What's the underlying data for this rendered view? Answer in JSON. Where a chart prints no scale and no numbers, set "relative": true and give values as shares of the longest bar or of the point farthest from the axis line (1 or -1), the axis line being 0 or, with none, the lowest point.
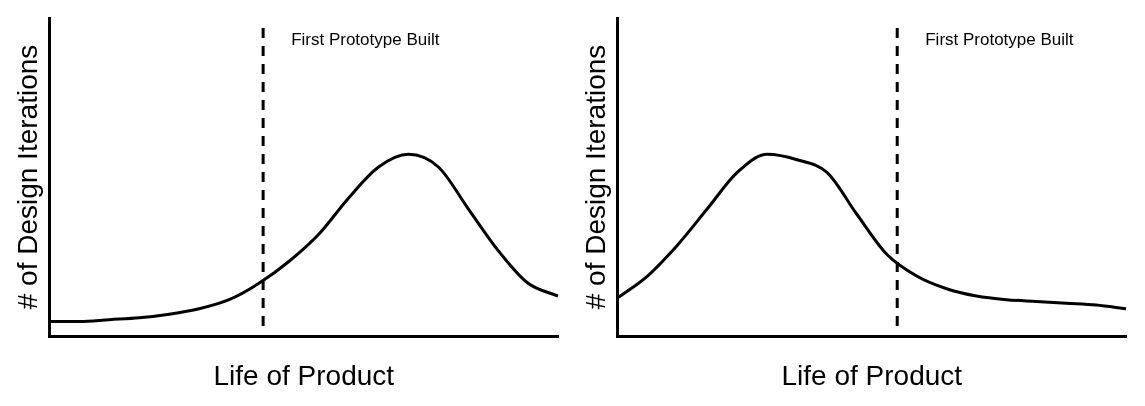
{
  "chart_data": [
    {
      "type": "line",
      "relative": true,
      "xlabel": "Life of Product",
      "ylabel": "# of Design Iterations",
      "categories": [
        null,
        null,
        null,
        null,
        null,
        null,
        null,
        null,
        null,
        null,
        null,
        null,
        null,
        null,
        null,
        null,
        null,
        null
      ],
      "series": [
        {
          "color": "#000000",
          "values": [
            0.08,
            0.08,
            0.09,
            0.1,
            0.12,
            0.15,
            0.2,
            0.29,
            0.41,
            0.56,
            0.76,
            0.93,
            1,
            0.93,
            0.7,
            0.47,
            0.29,
            0.22
          ]
        }
      ],
      "annotations": [
        "First Prototype Built"
      ],
      "grid": false,
      "legend": false,
      "marker": "none",
      "line_style": "solid"
    },
    {
      "type": "line",
      "relative": true,
      "xlabel": "Life of Product",
      "ylabel": "# of Design Iterations",
      "categories": [
        null,
        null,
        null,
        null,
        null,
        null,
        null,
        null,
        null,
        null,
        null,
        null,
        null,
        null,
        null,
        null,
        null,
        null
      ],
      "series": [
        {
          "color": "#000000",
          "values": [
            0.21,
            0.33,
            0.5,
            0.7,
            0.9,
            1,
            0.97,
            0.9,
            0.67,
            0.45,
            0.33,
            0.26,
            0.22,
            0.2,
            0.19,
            0.18,
            0.17,
            0.15
          ]
        }
      ],
      "annotations": [
        "First Prototype Built"
      ],
      "grid": false,
      "legend": false,
      "marker": "none",
      "line_style": "solid"
    }
  ]
}
